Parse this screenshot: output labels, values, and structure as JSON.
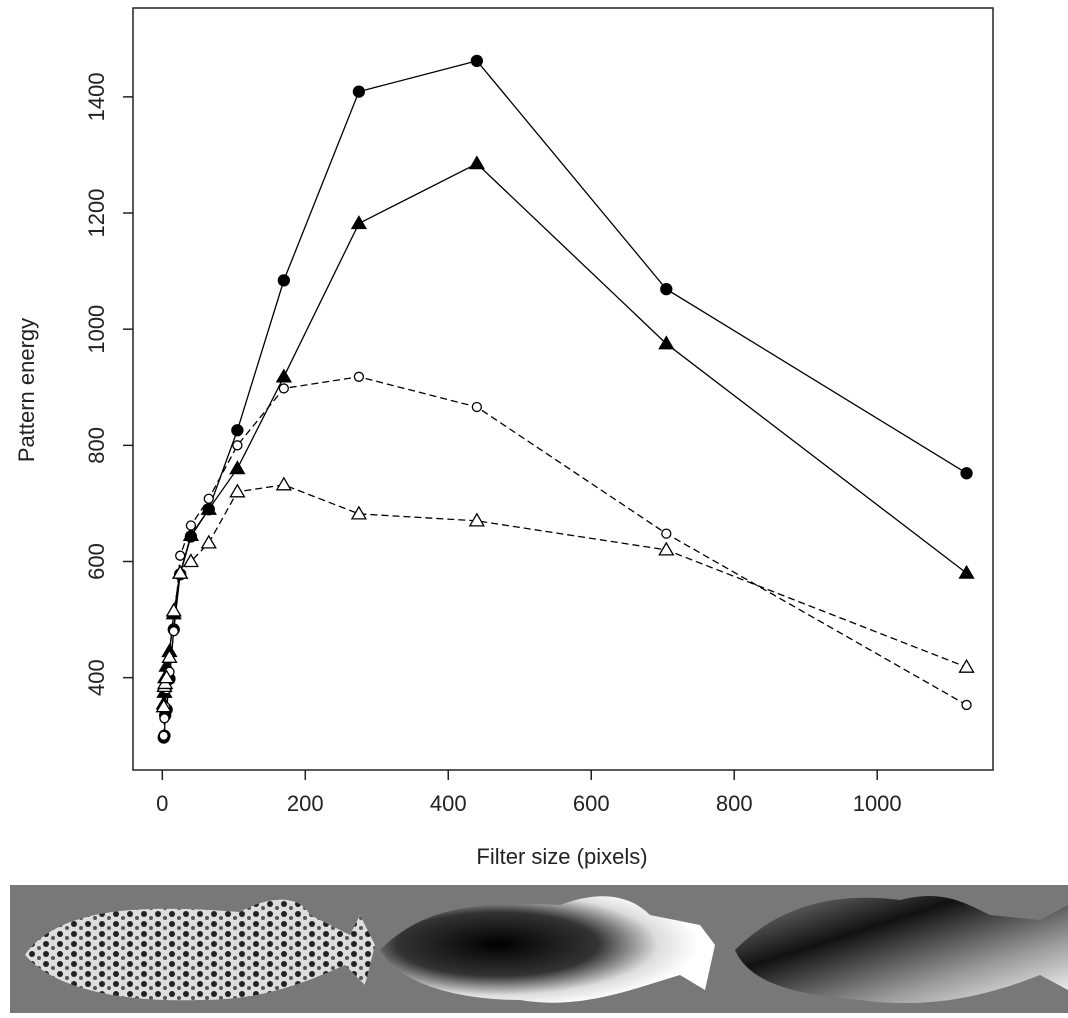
{
  "chart_data": {
    "type": "line",
    "x_label": "Filter size (pixels)",
    "y_label": "Pattern energy",
    "x": [
      2,
      3,
      4,
      6,
      10,
      16,
      25,
      40,
      65,
      105,
      170,
      275,
      440,
      705,
      1125
    ],
    "series": [
      {
        "color": "#000000",
        "marker": "filled-circle",
        "linestyle": "solid",
        "values": [
          297,
          300,
          335,
          345,
          398,
          483,
          578,
          643,
          690,
          826,
          1084,
          1409,
          1462,
          1069,
          752
        ]
      },
      {
        "color": "#000000",
        "marker": "filled-triangle",
        "linestyle": "solid",
        "values": [
          355,
          375,
          400,
          420,
          445,
          510,
          580,
          645,
          690,
          760,
          918,
          1182,
          1285,
          975,
          580
        ]
      },
      {
        "color": "#000000",
        "marker": "open-circle",
        "linestyle": "dashed",
        "values": [
          300,
          330,
          350,
          380,
          410,
          480,
          610,
          662,
          708,
          800,
          898,
          918,
          866,
          648,
          353
        ]
      },
      {
        "color": "#000000",
        "marker": "open-triangle",
        "linestyle": "dashed",
        "values": [
          350,
          385,
          390,
          400,
          435,
          515,
          580,
          600,
          632,
          720,
          732,
          682,
          670,
          620,
          418
        ]
      }
    ],
    "xlim": [
      -41,
      1162
    ],
    "xticks": [
      0,
      200,
      400,
      600,
      800,
      1000
    ],
    "ylim": [
      241,
      1553
    ],
    "yticks": [
      400,
      600,
      800,
      1000,
      1200,
      1400
    ]
  }
}
